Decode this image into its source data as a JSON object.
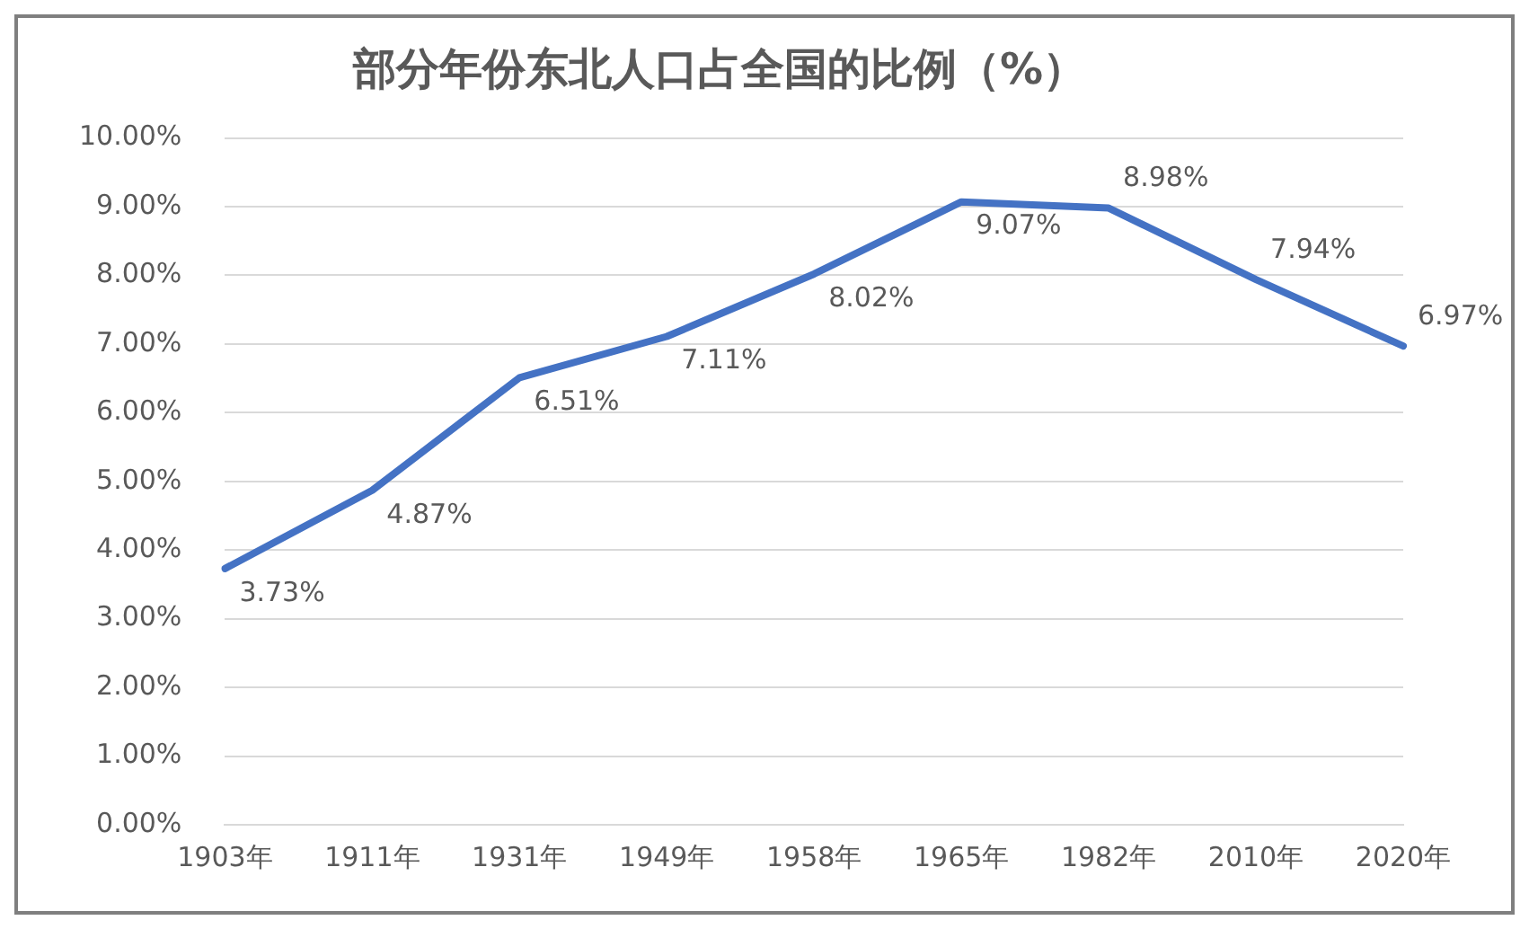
{
  "chart_data": {
    "type": "line",
    "title": "部分年份东北人口占全国的比例（%）",
    "categories": [
      "1903年",
      "1911年",
      "1931年",
      "1949年",
      "1958年",
      "1965年",
      "1982年",
      "2010年",
      "2020年"
    ],
    "series": [
      {
        "color": "#4472c4",
        "values": [
          3.73,
          4.87,
          6.51,
          7.11,
          8.02,
          9.07,
          8.98,
          7.94,
          6.97
        ],
        "value_labels": [
          "3.73%",
          "4.87%",
          "6.51%",
          "7.11%",
          "8.02%",
          "9.07%",
          "8.98%",
          "7.94%",
          "6.97%"
        ]
      }
    ],
    "ylim": [
      0,
      10
    ],
    "yticks": [
      {
        "value": 0,
        "label": "0.00%"
      },
      {
        "value": 1,
        "label": "1.00%"
      },
      {
        "value": 2,
        "label": "2.00%"
      },
      {
        "value": 3,
        "label": "3.00%"
      },
      {
        "value": 4,
        "label": "4.00%"
      },
      {
        "value": 5,
        "label": "5.00%"
      },
      {
        "value": 6,
        "label": "6.00%"
      },
      {
        "value": 7,
        "label": "7.00%"
      },
      {
        "value": 8,
        "label": "8.00%"
      },
      {
        "value": 9,
        "label": "9.00%"
      },
      {
        "value": 10,
        "label": "10.00%"
      }
    ],
    "grid": "y",
    "legend": false,
    "marker": "none",
    "line_style": "solid"
  }
}
